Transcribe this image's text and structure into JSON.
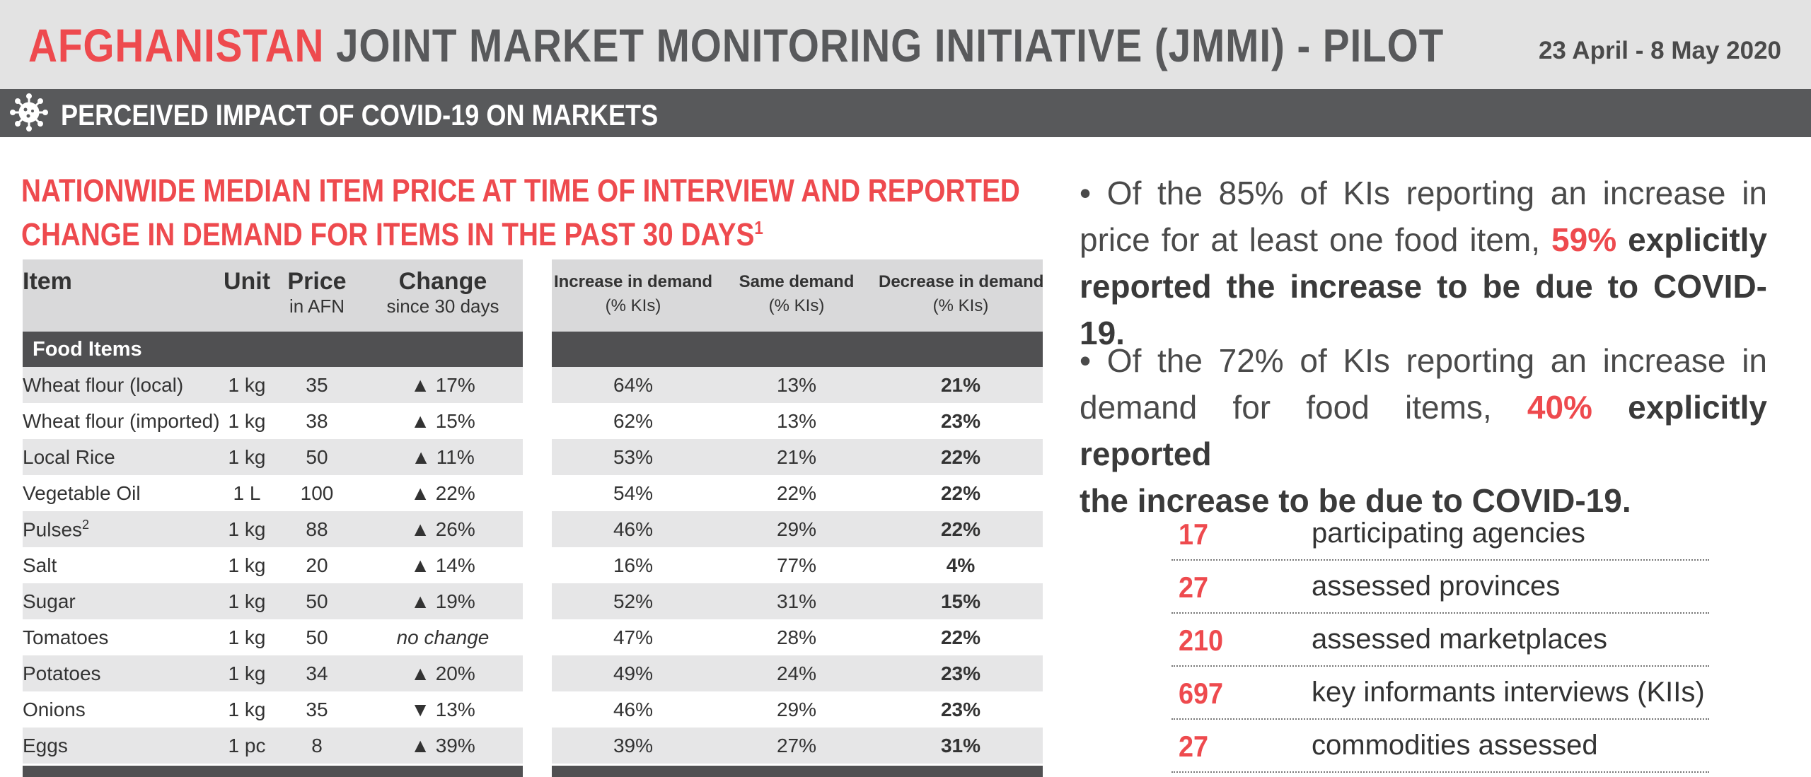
{
  "header": {
    "title_red": "AFGHANISTAN",
    "title_grey": "JOINT MARKET MONITORING INITIATIVE (JMMI) - PILOT",
    "dates": "23 April - 8 May 2020"
  },
  "section": {
    "title": "PERCEIVED IMPACT OF COVID-19 ON MARKETS",
    "icon": "virus-icon"
  },
  "table_title": {
    "line1": "NATIONWIDE MEDIAN ITEM PRICE AT TIME OF INTERVIEW AND REPORTED",
    "line2": "CHANGE IN DEMAND FOR ITEMS IN THE PAST 30 DAYS",
    "footnote": "1"
  },
  "left_table": {
    "headers": {
      "item": "Item",
      "unit": "Unit",
      "price": "Price",
      "price_sub": "in AFN",
      "change": "Change",
      "change_sub": "since 30 days"
    },
    "category": "Food Items",
    "rows": [
      {
        "item": "Wheat flour (local)",
        "sup": "",
        "unit": "1 kg",
        "price": "35",
        "arrow": "▲",
        "change": "17%",
        "dir": "up"
      },
      {
        "item": "Wheat flour (imported)",
        "sup": "",
        "unit": "1 kg",
        "price": "38",
        "arrow": "▲",
        "change": "15%",
        "dir": "up"
      },
      {
        "item": "Local Rice",
        "sup": "",
        "unit": "1 kg",
        "price": "50",
        "arrow": "▲",
        "change": "11%",
        "dir": "up"
      },
      {
        "item": "Vegetable Oil",
        "sup": "",
        "unit": "1 L",
        "price": "100",
        "arrow": "▲",
        "change": "22%",
        "dir": "up"
      },
      {
        "item": "Pulses",
        "sup": "2",
        "unit": "1 kg",
        "price": "88",
        "arrow": "▲",
        "change": "26%",
        "dir": "up"
      },
      {
        "item": "Salt",
        "sup": "",
        "unit": "1 kg",
        "price": "20",
        "arrow": "▲",
        "change": "14%",
        "dir": "up"
      },
      {
        "item": "Sugar",
        "sup": "",
        "unit": "1 kg",
        "price": "50",
        "arrow": "▲",
        "change": "19%",
        "dir": "up"
      },
      {
        "item": "Tomatoes",
        "sup": "",
        "unit": "1 kg",
        "price": "50",
        "arrow": "",
        "change": "no change",
        "dir": "none"
      },
      {
        "item": "Potatoes",
        "sup": "",
        "unit": "1 kg",
        "price": "34",
        "arrow": "▲",
        "change": "20%",
        "dir": "up"
      },
      {
        "item": "Onions",
        "sup": "",
        "unit": "1 kg",
        "price": "35",
        "arrow": "▼",
        "change": "13%",
        "dir": "down"
      },
      {
        "item": "Eggs",
        "sup": "",
        "unit": "1 pc",
        "price": "8",
        "arrow": "▲",
        "change": "39%",
        "dir": "up"
      }
    ]
  },
  "right_table": {
    "headers": {
      "increase": "Increase in demand",
      "same": "Same demand",
      "decrease": "Decrease in demand",
      "sub": "(% KIs)"
    },
    "rows": [
      {
        "inc": "64%",
        "same": "13%",
        "dec": "21%"
      },
      {
        "inc": "62%",
        "same": "13%",
        "dec": "23%"
      },
      {
        "inc": "53%",
        "same": "21%",
        "dec": "22%"
      },
      {
        "inc": "54%",
        "same": "22%",
        "dec": "22%"
      },
      {
        "inc": "46%",
        "same": "29%",
        "dec": "22%"
      },
      {
        "inc": "16%",
        "same": "77%",
        "dec": "4%"
      },
      {
        "inc": "52%",
        "same": "31%",
        "dec": "15%"
      },
      {
        "inc": "47%",
        "same": "28%",
        "dec": "22%"
      },
      {
        "inc": "49%",
        "same": "24%",
        "dec": "23%"
      },
      {
        "inc": "46%",
        "same": "29%",
        "dec": "23%"
      },
      {
        "inc": "39%",
        "same": "27%",
        "dec": "31%"
      }
    ]
  },
  "bullets": [
    {
      "l1": "• Of the 85% of KIs reporting an increase in",
      "l2a": "price for at least one food item,",
      "l2b": "59%",
      "l2c": "explicitly",
      "l3": "reported the increase to be due to COVID-19."
    },
    {
      "l1": "• Of the 72% of KIs reporting an increase in",
      "l2a": "demand for food items,",
      "l2b": "40%",
      "l2c": "explicitly reported",
      "l3": "the increase to be due to COVID-19."
    }
  ],
  "stats": [
    {
      "num": "17",
      "label": "participating agencies"
    },
    {
      "num": "27",
      "label": "assessed provinces"
    },
    {
      "num": "210",
      "label": "assessed marketplaces"
    },
    {
      "num": "697",
      "label": "key informants interviews (KIIs)"
    },
    {
      "num": "27",
      "label": "commodities assessed"
    }
  ],
  "colors": {
    "accent": "#ee4a4e",
    "dark": "#58595b",
    "increase": "#ee4a4e",
    "decrease_arrow": "#85c28a"
  }
}
